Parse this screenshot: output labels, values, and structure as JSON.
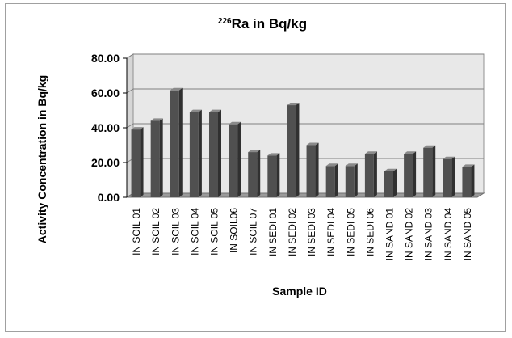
{
  "chart_data": {
    "type": "bar",
    "title_superscript": "226",
    "title_main": "Ra in Bq/kg",
    "xlabel": "Sample ID",
    "ylabel": "Activity Concentration in Bq/kg",
    "ylim": [
      0,
      80
    ],
    "yticks": [
      "0.00",
      "20.00",
      "40.00",
      "60.00",
      "80.00"
    ],
    "grid": true,
    "legend": "none",
    "categories": [
      "IN SOIL 01",
      "IN SOIL 02",
      "IN SOIL 03",
      "IN SOIL 04",
      "IN SOIL 05",
      "IN SOIL06",
      "IN SOIL 07",
      "IN SEDI 01",
      "IN SEDI 02",
      "IN SEDI 03",
      "IN SEDI 04",
      "IN SEDI 05",
      "IN SEDI 06",
      "IN SAND 01",
      "IN SAND 02",
      "IN SAND 03",
      "IN SAND 04",
      "IN SAND 05"
    ],
    "values": [
      39,
      44,
      61.5,
      49,
      49,
      42,
      26,
      24,
      53,
      30,
      18,
      18,
      25,
      15,
      25,
      28.5,
      22,
      17.5
    ],
    "colors": {
      "bar_front": "#505050",
      "bar_side": "#303030",
      "bar_top": "#8a8a8a",
      "wall": "#e8e8e8",
      "floor": "#9a9a9a",
      "grid": "#7f7f7f"
    }
  }
}
